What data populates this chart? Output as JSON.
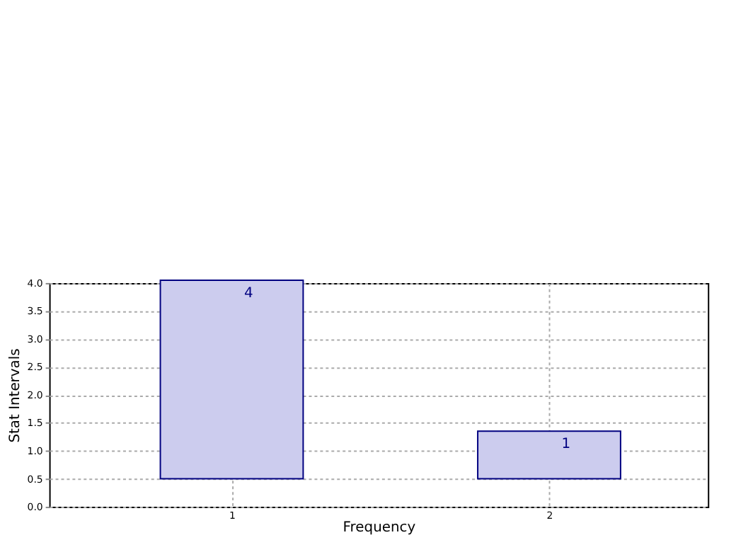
{
  "chart_data": {
    "type": "bar",
    "xlabel": "Frequency",
    "ylabel": "Stat Intervals",
    "x": [
      1,
      2
    ],
    "base": [
      0.5,
      0.5
    ],
    "color": "#ccccee",
    "values": [
      3.55,
      0.85
    ],
    "value_labels": [
      "4",
      "1"
    ],
    "xlim": [
      0.425,
      2.5
    ],
    "xticks": [
      1,
      2
    ],
    "ylim": [
      0,
      4
    ],
    "yticks": [
      {
        "value": 0,
        "label": "0.0"
      },
      0.5,
      {
        "value": 1,
        "label": "1.0"
      },
      1.5,
      {
        "value": 2,
        "label": "2.0"
      },
      2.5,
      {
        "value": 3,
        "label": "3.0"
      },
      3.5,
      {
        "value": 4,
        "label": "4.0"
      }
    ],
    "grid": true,
    "legend": false
  }
}
